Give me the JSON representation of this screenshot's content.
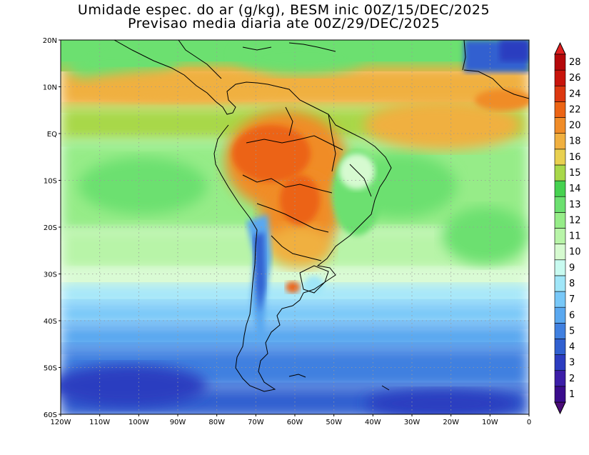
{
  "title": {
    "line1": "Umidade espec. do ar (g/kg), BESM inic 00Z/15/DEC/2025",
    "line2": "Previsao media diaria ate 00Z/29/DEC/2025"
  },
  "map": {
    "lat_labels": [
      "20N",
      "10N",
      "EQ",
      "10S",
      "20S",
      "30S",
      "40S",
      "50S",
      "60S"
    ],
    "lon_labels": [
      "120W",
      "110W",
      "100W",
      "90W",
      "80W",
      "70W",
      "60W",
      "50W",
      "40W",
      "30W",
      "20W",
      "10W",
      "0"
    ],
    "lat_extent": [
      -60,
      20
    ],
    "lon_extent": [
      -120,
      0
    ],
    "graticule": "dotted",
    "coastlines": true
  },
  "colorbar": {
    "levels": [
      "1",
      "2",
      "3",
      "4",
      "5",
      "6",
      "7",
      "8",
      "9",
      "10",
      "11",
      "12",
      "13",
      "14",
      "15",
      "16",
      "18",
      "20",
      "22",
      "24",
      "26",
      "28"
    ],
    "colors": [
      "#3a0c8c",
      "#3c1ea8",
      "#2c3cc0",
      "#3060d0",
      "#4080e0",
      "#5aa8f0",
      "#78c8f8",
      "#a0e6f8",
      "#c8faf0",
      "#d6fad0",
      "#b8f4a8",
      "#96ec88",
      "#6ce070",
      "#46d250",
      "#a8d84a",
      "#e8d050",
      "#f0b040",
      "#f08c28",
      "#ec6414",
      "#dc3810",
      "#c8140c",
      "#b4080a"
    ],
    "underflow_color": "#4a0c78",
    "overflow_color": "#e02020"
  }
}
